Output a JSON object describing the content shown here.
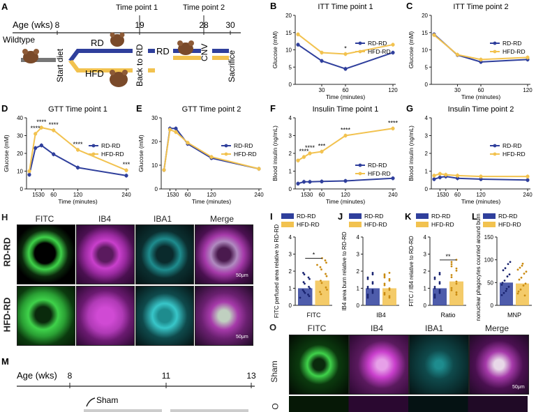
{
  "colors": {
    "rd": "#2f3f9c",
    "hfd": "#f2c24f",
    "grey": "#777777",
    "fitc": "#3fd24a",
    "ib4": "#c93fcc",
    "iba1": "#38c6c9"
  },
  "panelA": {
    "letter": "A",
    "age_label": "Age (wks)",
    "ticks": [
      "8",
      "19",
      "28",
      "30"
    ],
    "tp1": "Time point 1",
    "tp2": "Time point 2",
    "wildtype": "Wildtype",
    "start_diet": "Start diet",
    "rd": "RD",
    "hfd": "HFD",
    "back_to_rd": "Back to RD",
    "rd2": "RD",
    "cnv": "CNV",
    "sacrifice": "Sacrifice"
  },
  "chart_data": [
    {
      "id": "B",
      "type": "line",
      "title": "ITT Time point 1",
      "ylabel": "Glucose (mM)",
      "xlabel": "Time (minutes)",
      "x": [
        0,
        30,
        60,
        120
      ],
      "xticks": [
        "30",
        "60",
        "120"
      ],
      "ylim": [
        0,
        20
      ],
      "yticks": [
        "0",
        "5",
        "10",
        "15",
        "20"
      ],
      "series": [
        {
          "name": "RD-RD",
          "values": [
            11.5,
            6.8,
            4.5,
            9.2
          ]
        },
        {
          "name": "HFD-RD",
          "values": [
            14.5,
            9.2,
            8.8,
            11.5
          ]
        }
      ],
      "annotations": [
        {
          "x": 60,
          "text": "*"
        }
      ],
      "legend": [
        "RD-RD",
        "HFD-RD"
      ]
    },
    {
      "id": "C",
      "type": "line",
      "title": "ITT Time point 2",
      "ylabel": "Glucose (mM)",
      "xlabel": "Time (minutes)",
      "x": [
        0,
        30,
        60,
        120
      ],
      "xticks": [
        "30",
        "60",
        "120"
      ],
      "ylim": [
        0,
        20
      ],
      "yticks": [
        "0",
        "5",
        "10",
        "15",
        "20"
      ],
      "series": [
        {
          "name": "RD-RD",
          "values": [
            14.5,
            8.5,
            6.5,
            7.2
          ]
        },
        {
          "name": "HFD-RD",
          "values": [
            14.3,
            8.6,
            7.2,
            7.8
          ]
        }
      ],
      "annotations": [],
      "legend": [
        "RD-RD",
        "HFD-RD"
      ]
    },
    {
      "id": "D",
      "type": "line",
      "title": "GTT Time point 1",
      "ylabel": "Glucose (mM)",
      "xlabel": "Time (minutes)",
      "x": [
        0,
        15,
        30,
        60,
        120,
        240
      ],
      "xticks": [
        "15",
        "30",
        "60",
        "120",
        "240"
      ],
      "ylim": [
        0,
        40
      ],
      "yticks": [
        "0",
        "10",
        "20",
        "30",
        "40"
      ],
      "series": [
        {
          "name": "RD-RD",
          "values": [
            8,
            23,
            24.5,
            19.5,
            12,
            7.5
          ]
        },
        {
          "name": "HFD-RD",
          "values": [
            10,
            31,
            34.5,
            33,
            22,
            10.5
          ]
        }
      ],
      "annotations": [
        {
          "x": 15,
          "text": "****"
        },
        {
          "x": 30,
          "text": "****"
        },
        {
          "x": 60,
          "text": "****"
        },
        {
          "x": 120,
          "text": "****"
        },
        {
          "x": 240,
          "text": "***"
        }
      ],
      "legend": [
        "RD-RD",
        "HFD-RD"
      ]
    },
    {
      "id": "E",
      "type": "line",
      "title": "GTT Time point 2",
      "ylabel": "Glucose (mM)",
      "xlabel": "Time (minutes)",
      "x": [
        0,
        15,
        30,
        60,
        120,
        240
      ],
      "xticks": [
        "15",
        "30",
        "60",
        "120",
        "240"
      ],
      "ylim": [
        0,
        30
      ],
      "yticks": [
        "0",
        "10",
        "20",
        "30"
      ],
      "series": [
        {
          "name": "RD-RD",
          "values": [
            8,
            25.5,
            25.5,
            19,
            13,
            8.5
          ]
        },
        {
          "name": "HFD-RD",
          "values": [
            8,
            25,
            24,
            19.5,
            13.5,
            8.5
          ]
        }
      ],
      "annotations": [],
      "legend": [
        "RD-RD",
        "HFD-RD"
      ]
    },
    {
      "id": "F",
      "type": "line",
      "title": "Insulin Time point 1",
      "ylabel": "Blood insulin (ng/mL)",
      "xlabel": "Time (minutes)",
      "x": [
        0,
        15,
        30,
        60,
        120,
        240
      ],
      "xticks": [
        "15",
        "30",
        "60",
        "120",
        "240"
      ],
      "ylim": [
        0,
        4
      ],
      "yticks": [
        "0",
        "1",
        "2",
        "3",
        "4"
      ],
      "series": [
        {
          "name": "RD-RD",
          "values": [
            0.3,
            0.4,
            0.4,
            0.42,
            0.45,
            0.6
          ]
        },
        {
          "name": "HFD-RD",
          "values": [
            1.6,
            1.8,
            2.0,
            2.1,
            3.0,
            3.4
          ]
        }
      ],
      "annotations": [
        {
          "x": 15,
          "text": "****"
        },
        {
          "x": 30,
          "text": "****"
        },
        {
          "x": 60,
          "text": "***"
        },
        {
          "x": 120,
          "text": "****"
        },
        {
          "x": 240,
          "text": "****"
        }
      ],
      "legend": [
        "RD-RD",
        "HFD-RD"
      ]
    },
    {
      "id": "G",
      "type": "line",
      "title": "Insulin Time point 2",
      "ylabel": "Blood insulin (ng/mL)",
      "xlabel": "Time (minutes)",
      "x": [
        0,
        15,
        30,
        60,
        120,
        240
      ],
      "xticks": [
        "15",
        "30",
        "60",
        "120",
        "240"
      ],
      "ylim": [
        0,
        4
      ],
      "yticks": [
        "0",
        "1",
        "2",
        "3",
        "4"
      ],
      "series": [
        {
          "name": "RD-RD",
          "values": [
            0.55,
            0.65,
            0.7,
            0.6,
            0.55,
            0.5
          ]
        },
        {
          "name": "HFD-RD",
          "values": [
            0.75,
            0.85,
            0.8,
            0.75,
            0.7,
            0.7
          ]
        }
      ],
      "annotations": [],
      "legend": [
        "RD-RD",
        "HFD-RD"
      ]
    },
    {
      "id": "I",
      "type": "bar",
      "ylabel": "FITC perfused area relative to RD-RD",
      "ylim": [
        0,
        4
      ],
      "yticks": [
        "0",
        "1",
        "2",
        "3",
        "4"
      ],
      "categories": [
        "RD-RD",
        "HFD-RD"
      ],
      "values": [
        1.0,
        1.45
      ],
      "xlabel": "FITC",
      "sig": "*",
      "legend": [
        "RD-RD",
        "HFD-RD"
      ]
    },
    {
      "id": "J",
      "type": "bar",
      "ylabel": "IB4 area burn relative to RD-RD",
      "ylim": [
        0,
        4
      ],
      "yticks": [
        "0",
        "1",
        "2",
        "3",
        "4"
      ],
      "categories": [
        "RD-RD",
        "HFD-RD"
      ],
      "values": [
        1.0,
        1.0
      ],
      "xlabel": "IB4",
      "sig": "",
      "legend": [
        "RD-RD",
        "HFD-RD"
      ]
    },
    {
      "id": "K",
      "type": "bar",
      "ylabel": "FITC / IB4 relative to RD-RD",
      "ylim": [
        0,
        4
      ],
      "yticks": [
        "0",
        "1",
        "2",
        "3",
        "4"
      ],
      "categories": [
        "RD-RD",
        "HFD-RD"
      ],
      "values": [
        1.0,
        1.4
      ],
      "xlabel": "Ratio",
      "sig": "**",
      "legend": [
        "RD-RD",
        "HFD-RD"
      ]
    },
    {
      "id": "L",
      "type": "bar",
      "ylabel": "Mononuclear phagocytes counted around burn",
      "ylim": [
        0,
        150
      ],
      "yticks": [
        "0",
        "50",
        "100",
        "150"
      ],
      "categories": [
        "RD-RD",
        "HFD-RD"
      ],
      "values": [
        50,
        48
      ],
      "xlabel": "MNP",
      "sig": "",
      "legend": [
        "RD-RD",
        "HFD-RD"
      ]
    }
  ],
  "panelH": {
    "letter": "H",
    "columns": [
      "FITC",
      "IB4",
      "IBA1",
      "Merge"
    ],
    "rows": [
      "RD-RD",
      "HFD-RD"
    ],
    "scale": "50μm"
  },
  "panelO": {
    "letter": "O",
    "columns": [
      "FITC",
      "IB4",
      "IBA1",
      "Merge"
    ],
    "rows": [
      "Sham"
    ],
    "scale": "50μm"
  },
  "panelM": {
    "letter": "M",
    "age_label": "Age (wks)",
    "ticks": [
      "8",
      "11",
      "13"
    ],
    "sham": "Sham"
  }
}
